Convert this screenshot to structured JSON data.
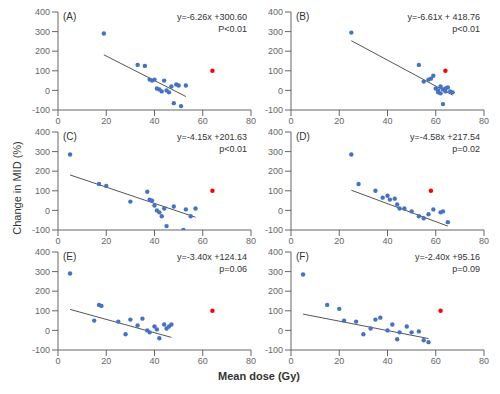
{
  "xlabel": "Mean dose (Gy)",
  "ylabel": "Change in MID (%)",
  "chart_data": [
    {
      "type": "scatter",
      "title": "(A)",
      "annotations": [
        "y=-6.26x +300.60",
        "P<0.01"
      ],
      "xlim": [
        0,
        80
      ],
      "xticks": [
        0,
        20,
        40,
        60,
        80
      ],
      "ylim": [
        -100,
        400
      ],
      "yticks": [
        -100,
        0,
        100,
        200,
        300,
        400
      ],
      "grid": false,
      "series": [
        {
          "type": "scatter",
          "color": "#4472C4",
          "x": [
            19,
            33,
            36,
            38,
            39,
            40,
            41,
            42,
            43,
            44,
            45,
            46,
            47,
            48,
            49,
            50,
            51,
            53
          ],
          "values": [
            290,
            130,
            125,
            55,
            50,
            55,
            10,
            5,
            -5,
            50,
            0,
            -10,
            20,
            -65,
            30,
            25,
            -80,
            25
          ]
        },
        {
          "type": "scatter",
          "color": "#FF0000",
          "x": [
            64
          ],
          "values": [
            100
          ]
        },
        {
          "type": "line",
          "color": "#555555",
          "x": [
            19,
            53
          ],
          "values": [
            181.66,
            -31.18
          ]
        }
      ]
    },
    {
      "type": "scatter",
      "title": "(B)",
      "annotations": [
        "y=-6.61x + 418.76",
        "p<0.01"
      ],
      "xlim": [
        0,
        80
      ],
      "xticks": [
        0,
        20,
        40,
        60,
        80
      ],
      "ylim": [
        -100,
        400
      ],
      "yticks": [
        -100,
        0,
        100,
        200,
        300,
        400
      ],
      "grid": false,
      "series": [
        {
          "type": "scatter",
          "color": "#4472C4",
          "x": [
            25,
            53,
            55,
            57,
            58,
            59,
            60,
            61,
            61,
            62,
            62,
            63,
            63,
            64,
            64,
            65,
            66,
            67
          ],
          "values": [
            295,
            130,
            45,
            55,
            60,
            75,
            10,
            0,
            -10,
            -15,
            20,
            -70,
            5,
            -5,
            10,
            15,
            -5,
            -10
          ]
        },
        {
          "type": "scatter",
          "color": "#FF0000",
          "x": [
            64
          ],
          "values": [
            100
          ]
        },
        {
          "type": "line",
          "color": "#555555",
          "x": [
            25,
            67
          ],
          "values": [
            253.51,
            -24.11
          ]
        }
      ]
    },
    {
      "type": "scatter",
      "title": "(C)",
      "annotations": [
        "y=-4.15x +201.63",
        "p<0.01"
      ],
      "xlim": [
        0,
        80
      ],
      "xticks": [
        0,
        20,
        40,
        60,
        80
      ],
      "ylim": [
        -100,
        400
      ],
      "yticks": [
        -100,
        0,
        100,
        200,
        300,
        400
      ],
      "grid": false,
      "series": [
        {
          "type": "scatter",
          "color": "#4472C4",
          "x": [
            5,
            17,
            20,
            30,
            37,
            38,
            39,
            40,
            41,
            42,
            43,
            44,
            45,
            48,
            52,
            53,
            55,
            57
          ],
          "values": [
            285,
            135,
            125,
            45,
            95,
            55,
            50,
            25,
            0,
            -10,
            -30,
            10,
            -80,
            20,
            -100,
            5,
            -30,
            10
          ]
        },
        {
          "type": "scatter",
          "color": "#FF0000",
          "x": [
            64
          ],
          "values": [
            100
          ]
        },
        {
          "type": "line",
          "color": "#555555",
          "x": [
            5,
            57
          ],
          "values": [
            180.88,
            -34.92
          ]
        }
      ]
    },
    {
      "type": "scatter",
      "title": "(D)",
      "annotations": [
        "y=-4.58x +217.54",
        "p=0.02"
      ],
      "xlim": [
        0,
        80
      ],
      "xticks": [
        0,
        20,
        40,
        60,
        80
      ],
      "ylim": [
        -100,
        400
      ],
      "yticks": [
        -100,
        0,
        100,
        200,
        300,
        400
      ],
      "grid": false,
      "series": [
        {
          "type": "scatter",
          "color": "#4472C4",
          "x": [
            25,
            28,
            35,
            38,
            40,
            41,
            43,
            44,
            45,
            47,
            50,
            53,
            55,
            57,
            59,
            62,
            63,
            65
          ],
          "values": [
            285,
            135,
            100,
            65,
            75,
            55,
            60,
            30,
            10,
            10,
            -5,
            -30,
            -40,
            -20,
            5,
            -10,
            -5,
            -60
          ]
        },
        {
          "type": "scatter",
          "color": "#FF0000",
          "x": [
            58
          ],
          "values": [
            100
          ]
        },
        {
          "type": "line",
          "color": "#555555",
          "x": [
            25,
            65
          ],
          "values": [
            103.04,
            -80.16
          ]
        }
      ]
    },
    {
      "type": "scatter",
      "title": "(E)",
      "annotations": [
        "y=-3.40x +124.14",
        "p=0.06"
      ],
      "xlim": [
        0,
        80
      ],
      "xticks": [
        0,
        20,
        40,
        60,
        80
      ],
      "ylim": [
        -100,
        400
      ],
      "yticks": [
        -100,
        0,
        100,
        200,
        300,
        400
      ],
      "grid": false,
      "series": [
        {
          "type": "scatter",
          "color": "#4472C4",
          "x": [
            5,
            15,
            17,
            18,
            25,
            28,
            30,
            33,
            35,
            37,
            38,
            40,
            41,
            42,
            44,
            45,
            46,
            47
          ],
          "values": [
            290,
            50,
            130,
            125,
            45,
            -20,
            55,
            25,
            60,
            0,
            -10,
            20,
            5,
            -40,
            30,
            10,
            20,
            30
          ]
        },
        {
          "type": "scatter",
          "color": "#FF0000",
          "x": [
            64
          ],
          "values": [
            100
          ]
        },
        {
          "type": "line",
          "color": "#555555",
          "x": [
            5,
            47
          ],
          "values": [
            107.14,
            -35.66
          ]
        }
      ]
    },
    {
      "type": "scatter",
      "title": "(F)",
      "annotations": [
        "y=-2.40x +95.16",
        "p=0.09"
      ],
      "xlim": [
        0,
        80
      ],
      "xticks": [
        0,
        20,
        40,
        60,
        80
      ],
      "ylim": [
        -100,
        400
      ],
      "yticks": [
        -100,
        0,
        100,
        200,
        300,
        400
      ],
      "grid": false,
      "series": [
        {
          "type": "scatter",
          "color": "#4472C4",
          "x": [
            5,
            15,
            20,
            22,
            27,
            30,
            33,
            35,
            37,
            40,
            42,
            44,
            45,
            48,
            50,
            53,
            55,
            57
          ],
          "values": [
            285,
            130,
            110,
            50,
            45,
            -20,
            10,
            55,
            65,
            0,
            30,
            -45,
            -10,
            20,
            -10,
            -5,
            -50,
            -60
          ]
        },
        {
          "type": "scatter",
          "color": "#FF0000",
          "x": [
            62
          ],
          "values": [
            100
          ]
        },
        {
          "type": "line",
          "color": "#555555",
          "x": [
            5,
            57
          ],
          "values": [
            83.16,
            -41.64
          ]
        }
      ]
    }
  ]
}
